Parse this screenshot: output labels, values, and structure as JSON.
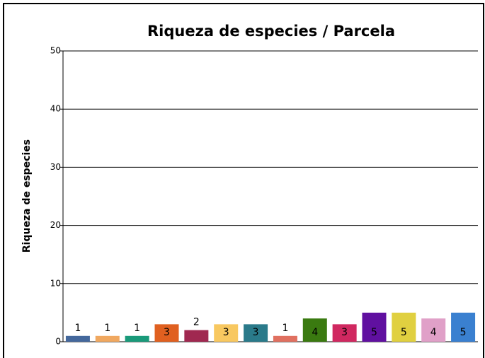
{
  "chart_data": {
    "type": "bar",
    "title": "Riqueza de especies  / Parcela",
    "y_label": "Riqueza de especies",
    "values": [
      1,
      1,
      1,
      3,
      2,
      3,
      3,
      1,
      4,
      3,
      5,
      5,
      4,
      5
    ],
    "colors": [
      "#44689c",
      "#f0a860",
      "#1a9a7a",
      "#e06020",
      "#a02850",
      "#f8c860",
      "#2a7a8a",
      "#e07060",
      "#3a7a10",
      "#d02860",
      "#6010a0",
      "#e0d040",
      "#e0a0c8",
      "#3a80d0"
    ],
    "ylim": [
      0,
      50
    ],
    "yticks": [
      0,
      10,
      20,
      30,
      40,
      50
    ],
    "grid": true
  }
}
